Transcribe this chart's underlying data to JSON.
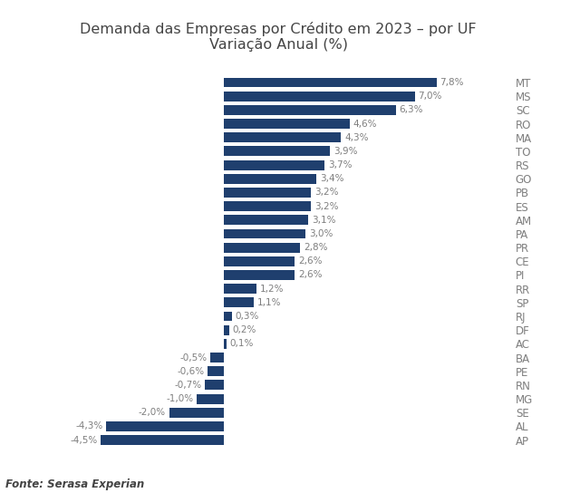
{
  "title": "Demanda das Empresas por Crédito em 2023 – por UF\nVariação Anual (%)",
  "fonte": "Fonte: Serasa Experian",
  "categories": [
    "MT",
    "MS",
    "SC",
    "RO",
    "MA",
    "TO",
    "RS",
    "GO",
    "PB",
    "ES",
    "AM",
    "PA",
    "PR",
    "CE",
    "PI",
    "RR",
    "SP",
    "RJ",
    "DF",
    "AC",
    "BA",
    "PE",
    "RN",
    "MG",
    "SE",
    "AL",
    "AP"
  ],
  "values": [
    7.8,
    7.0,
    6.3,
    4.6,
    4.3,
    3.9,
    3.7,
    3.4,
    3.2,
    3.2,
    3.1,
    3.0,
    2.8,
    2.6,
    2.6,
    1.2,
    1.1,
    0.3,
    0.2,
    0.1,
    -0.5,
    -0.6,
    -0.7,
    -1.0,
    -2.0,
    -4.3,
    -4.5
  ],
  "bar_color": "#1F3F6E",
  "bg_color": "#FFFFFF",
  "label_color": "#7f7f7f",
  "title_color": "#444444",
  "title_fontsize": 11.5,
  "label_fontsize": 7.5,
  "tick_fontsize": 8.5,
  "fonte_fontsize": 8.5,
  "bar_height": 0.72,
  "xlim": [
    -6.5,
    10.5
  ]
}
